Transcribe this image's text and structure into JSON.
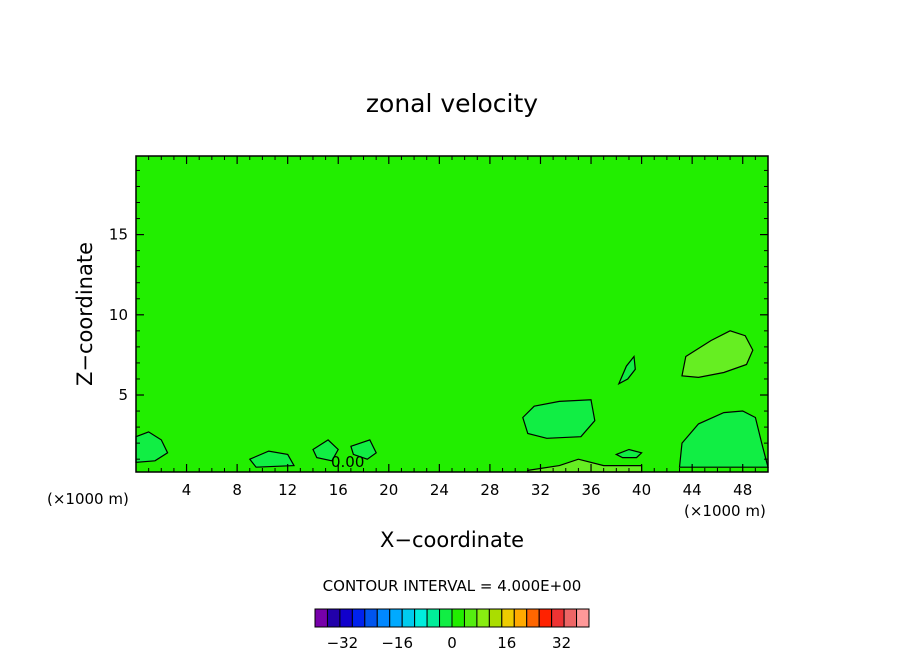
{
  "chart_data": {
    "type": "heatmap",
    "title": "zonal velocity",
    "xlabel": "X−coordinate",
    "ylabel": "Z−coordinate",
    "x_unit_left": "(×1000 m)",
    "x_unit_right": "(×1000 m)",
    "xlim": [
      0,
      50
    ],
    "ylim": [
      0.2,
      19.9
    ],
    "x_ticks": [
      4,
      8,
      12,
      16,
      20,
      24,
      28,
      32,
      36,
      40,
      44,
      48
    ],
    "y_ticks": [
      5,
      10,
      15
    ],
    "contour_interval_text": "CONTOUR INTERVAL = 4.000E+00",
    "contour_label": "0.00",
    "background_level": 0,
    "colors": {
      "background_field": "#22ee00",
      "positive_region": "#66ee22",
      "negative_region": "#11ee44"
    },
    "regions": [
      {
        "sign": "positive",
        "points": [
          [
            43.2,
            6.2
          ],
          [
            43.5,
            7.4
          ],
          [
            45.5,
            8.4
          ],
          [
            47.0,
            9.0
          ],
          [
            48.2,
            8.7
          ],
          [
            48.8,
            7.8
          ],
          [
            48.3,
            6.9
          ],
          [
            46.5,
            6.4
          ],
          [
            44.5,
            6.1
          ]
        ]
      },
      {
        "sign": "negative",
        "points": [
          [
            30.6,
            3.6
          ],
          [
            31.5,
            4.3
          ],
          [
            33.5,
            4.6
          ],
          [
            36.0,
            4.7
          ],
          [
            36.3,
            3.4
          ],
          [
            35.2,
            2.4
          ],
          [
            32.5,
            2.3
          ],
          [
            31.0,
            2.6
          ]
        ]
      },
      {
        "sign": "negative",
        "points": [
          [
            43.2,
            2.0
          ],
          [
            44.5,
            3.2
          ],
          [
            46.5,
            3.9
          ],
          [
            48.0,
            4.0
          ],
          [
            49.0,
            3.6
          ],
          [
            49.5,
            2.0
          ],
          [
            50,
            0.5
          ],
          [
            43.0,
            0.5
          ]
        ]
      },
      {
        "sign": "negative",
        "points": [
          [
            0,
            2.4
          ],
          [
            1.0,
            2.7
          ],
          [
            2.0,
            2.2
          ],
          [
            2.5,
            1.4
          ],
          [
            1.5,
            0.9
          ],
          [
            0,
            0.8
          ]
        ]
      },
      {
        "sign": "negative",
        "points": [
          [
            38.2,
            5.7
          ],
          [
            38.8,
            6.8
          ],
          [
            39.4,
            7.4
          ],
          [
            39.5,
            6.6
          ],
          [
            38.9,
            6.0
          ]
        ]
      },
      {
        "sign": "negative",
        "points": [
          [
            38.0,
            1.3
          ],
          [
            39.0,
            1.6
          ],
          [
            40.0,
            1.4
          ],
          [
            39.6,
            1.1
          ],
          [
            38.5,
            1.1
          ]
        ]
      },
      {
        "sign": "negative",
        "points": [
          [
            14.0,
            1.6
          ],
          [
            15.2,
            2.2
          ],
          [
            16.0,
            1.6
          ],
          [
            15.5,
            0.9
          ],
          [
            14.3,
            1.1
          ]
        ]
      },
      {
        "sign": "negative",
        "points": [
          [
            17.0,
            1.8
          ],
          [
            18.5,
            2.2
          ],
          [
            19.0,
            1.4
          ],
          [
            18.3,
            1.0
          ],
          [
            17.2,
            1.3
          ]
        ]
      },
      {
        "sign": "negative",
        "points": [
          [
            9.0,
            1.0
          ],
          [
            10.5,
            1.5
          ],
          [
            12.0,
            1.3
          ],
          [
            12.5,
            0.6
          ],
          [
            9.5,
            0.5
          ]
        ]
      },
      {
        "sign": "positive",
        "points": [
          [
            31.0,
            0.3
          ],
          [
            33.5,
            0.6
          ],
          [
            35.0,
            1.0
          ],
          [
            37.0,
            0.6
          ],
          [
            40.0,
            0.6
          ],
          [
            40.0,
            0.2
          ],
          [
            31.0,
            0.2
          ]
        ]
      }
    ],
    "colorbar": {
      "tick_labels": [
        "−32",
        "−16",
        "0",
        "16",
        "32"
      ],
      "tick_values": [
        -32,
        -16,
        0,
        16,
        32
      ],
      "min": -40,
      "max": 40,
      "step": 4,
      "colors": [
        "#7700aa",
        "#2200aa",
        "#1100cc",
        "#0022ee",
        "#0055ee",
        "#0088ff",
        "#00aaff",
        "#00ccee",
        "#00eedd",
        "#00ee99",
        "#11ee44",
        "#22ee00",
        "#55ee11",
        "#88ee11",
        "#aadd00",
        "#eecc00",
        "#ffaa00",
        "#ff6600",
        "#ff2200",
        "#ee3333",
        "#ee6666",
        "#ff9999"
      ]
    }
  }
}
